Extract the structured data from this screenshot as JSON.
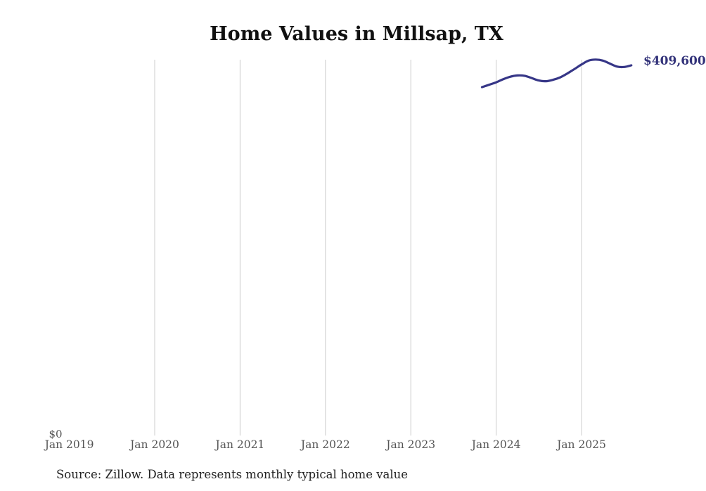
{
  "page": {
    "title": "Home Values in Millsap, TX",
    "source_note": "Source: Zillow. Data represents monthly typical home value"
  },
  "colors": {
    "line": "#363687",
    "end_label_text": "#33337a",
    "grid": "#cccccc",
    "axis_text": "#555555",
    "title_text": "#111111",
    "source_text": "#222222",
    "background": "#ffffff"
  },
  "chart_data": {
    "type": "line",
    "title": "Home Values in Millsap, TX",
    "xlabel": "",
    "ylabel": "",
    "grid": "vertical-only",
    "legend_position": "none",
    "x_tick_labels": [
      "Jan 2019",
      "Jan 2020",
      "Jan 2021",
      "Jan 2022",
      "Jan 2023",
      "Jan 2024",
      "Jan 2025"
    ],
    "gridlines_at": [
      "Jan 2020",
      "Jan 2021",
      "Jan 2022",
      "Jan 2023",
      "Jan 2024",
      "Jan 2025"
    ],
    "y_axis": {
      "zero_label": "$0",
      "min": 0,
      "max_estimate": 440000
    },
    "end_label": "$409,600",
    "source": "Source: Zillow. Data represents monthly typical home value",
    "series": [
      {
        "name": "Monthly typical home value",
        "color": "#363687",
        "points": [
          {
            "month": "Nov 2023",
            "value": 385400
          },
          {
            "month": "Dec 2023",
            "value": 388100
          },
          {
            "month": "Jan 2024",
            "value": 390800
          },
          {
            "month": "Feb 2024",
            "value": 394300
          },
          {
            "month": "Mar 2024",
            "value": 397000
          },
          {
            "month": "Apr 2024",
            "value": 398400
          },
          {
            "month": "May 2024",
            "value": 398000
          },
          {
            "month": "Jun 2024",
            "value": 395500
          },
          {
            "month": "Jul 2024",
            "value": 392800
          },
          {
            "month": "Aug 2024",
            "value": 392000
          },
          {
            "month": "Sep 2024",
            "value": 393600
          },
          {
            "month": "Oct 2024",
            "value": 396300
          },
          {
            "month": "Nov 2024",
            "value": 400600
          },
          {
            "month": "Dec 2024",
            "value": 405500
          },
          {
            "month": "Jan 2025",
            "value": 410500
          },
          {
            "month": "Feb 2025",
            "value": 414800
          },
          {
            "month": "Mar 2025",
            "value": 416000
          },
          {
            "month": "Apr 2025",
            "value": 414800
          },
          {
            "month": "May 2025",
            "value": 411500
          },
          {
            "month": "Jun 2025",
            "value": 408200
          },
          {
            "month": "Jul 2025",
            "value": 407800
          },
          {
            "month": "Aug 2025",
            "value": 409600
          }
        ]
      }
    ]
  }
}
